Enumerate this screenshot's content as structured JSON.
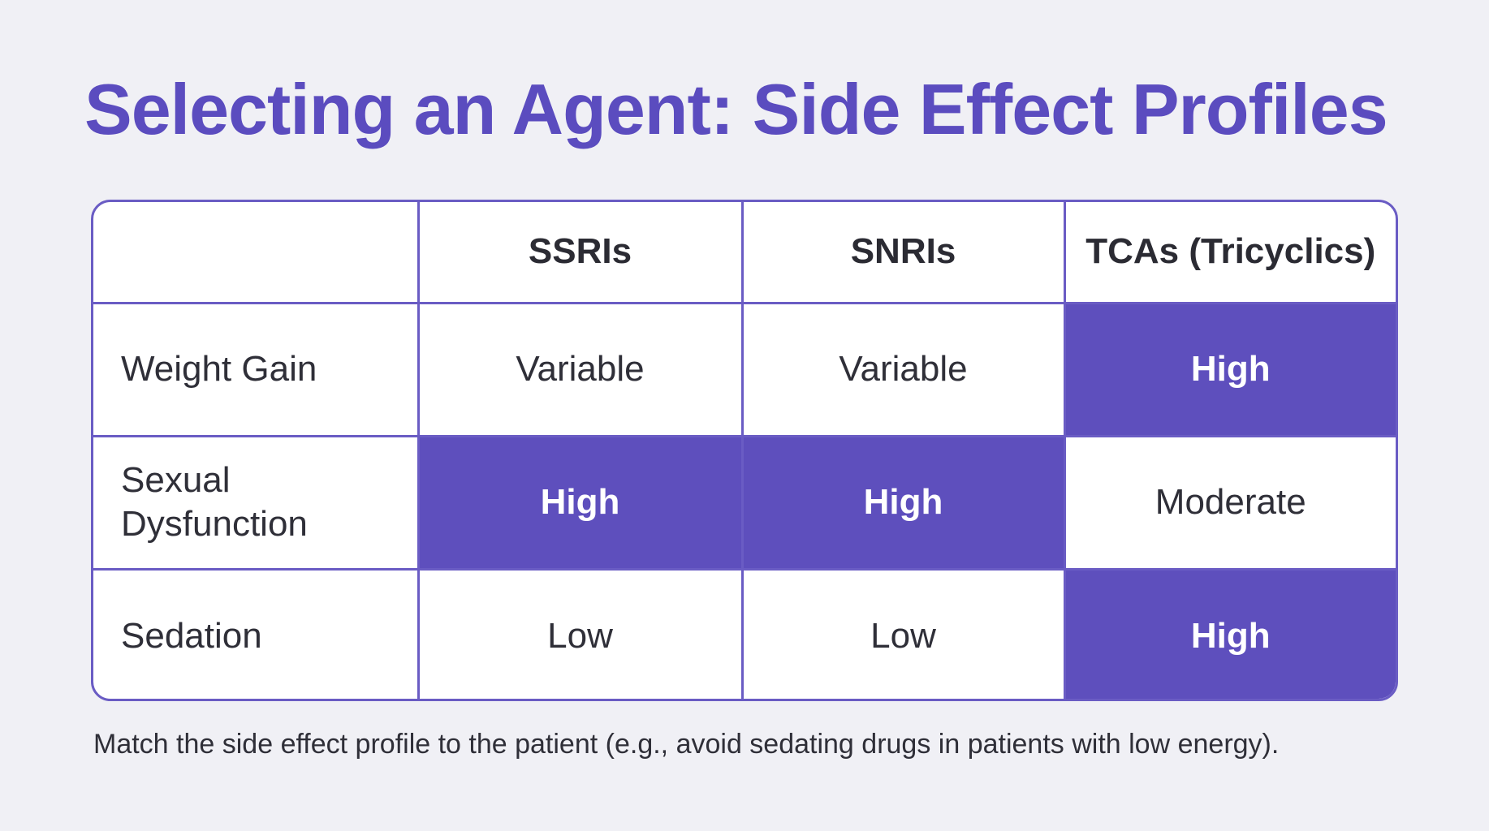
{
  "title": "Selecting an Agent: Side Effect Profiles",
  "table": {
    "corner": "",
    "columns": [
      "SSRIs",
      "SNRIs",
      "TCAs (Tricyclics)"
    ],
    "rows": [
      {
        "label": "Weight Gain",
        "cells": [
          {
            "text": "Variable",
            "highlight": false
          },
          {
            "text": "Variable",
            "highlight": false
          },
          {
            "text": "High",
            "highlight": true
          }
        ]
      },
      {
        "label": "Sexual Dysfunction",
        "cells": [
          {
            "text": "High",
            "highlight": true
          },
          {
            "text": "High",
            "highlight": true
          },
          {
            "text": "Moderate",
            "highlight": false
          }
        ]
      },
      {
        "label": "Sedation",
        "cells": [
          {
            "text": "Low",
            "highlight": false
          },
          {
            "text": "Low",
            "highlight": false
          },
          {
            "text": "High",
            "highlight": true
          }
        ]
      }
    ]
  },
  "caption": "Match the side effect profile to the patient (e.g., avoid sedating drugs in patients with low energy).",
  "colors": {
    "accent": "#5b4cbf",
    "highlight_fill": "#5e4fbd",
    "border": "#6a5cc4",
    "background": "#f0f0f5"
  }
}
